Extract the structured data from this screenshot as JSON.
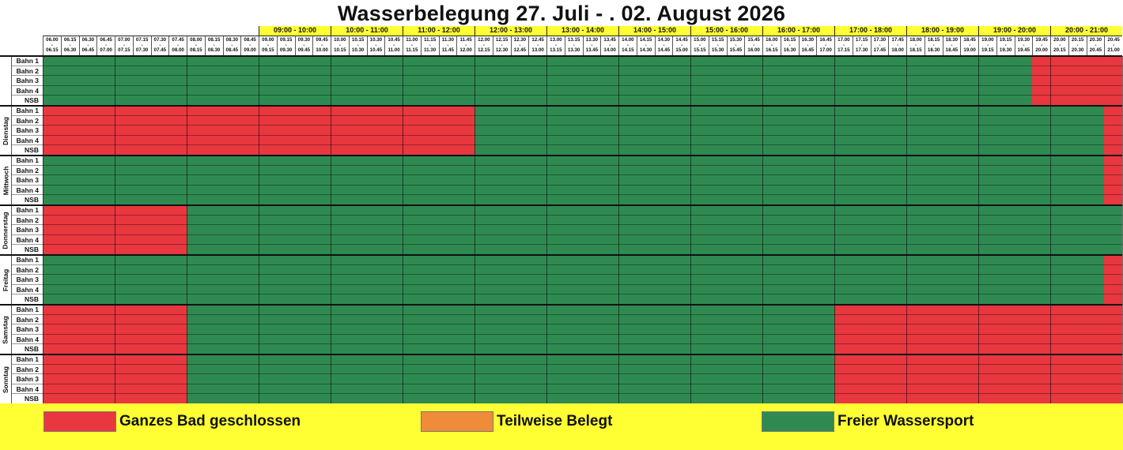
{
  "title": "Wasserbelegung 27. Juli - . 02. August 2026",
  "hours": [
    {
      "label": "09:00 - 10:00",
      "first": 12
    },
    {
      "label": "10:00 - 11:00",
      "first": 16
    },
    {
      "label": "11:00 - 12:00",
      "first": 20
    },
    {
      "label": "12:00 - 13:00",
      "first": 24
    },
    {
      "label": "13:00 - 14:00",
      "first": 28
    },
    {
      "label": "14:00 - 15:00",
      "first": 32
    },
    {
      "label": "15:00 - 16:00",
      "first": 36
    },
    {
      "label": "16:00 - 17:00",
      "first": 40
    },
    {
      "label": "17:00 - 18:00",
      "first": 44
    },
    {
      "label": "18:00 - 19:00",
      "first": 48
    },
    {
      "label": "19:00 - 20:00",
      "first": 52
    },
    {
      "label": "20:00 - 21:00",
      "first": 56
    }
  ],
  "slot_starts": [
    "06.00",
    "06.15",
    "06.30",
    "06.45",
    "07.00",
    "07.15",
    "07.30",
    "07.45",
    "08.00",
    "08.15",
    "08.30",
    "08.45",
    "09.00",
    "09.15",
    "09.30",
    "09.45",
    "10.00",
    "10.15",
    "10.30",
    "10.45",
    "11.00",
    "11.15",
    "11.30",
    "11.45",
    "12.00",
    "12.15",
    "12.30",
    "12.45",
    "13.00",
    "13.15",
    "13.30",
    "13.45",
    "14.00",
    "14.15",
    "14.30",
    "14.45",
    "15.00",
    "15.15",
    "15.30",
    "15.45",
    "16.00",
    "16.15",
    "16.30",
    "16.45",
    "17.00",
    "17.15",
    "17.30",
    "17.45",
    "18.00",
    "18.15",
    "18.30",
    "18.45",
    "19.00",
    "19.15",
    "19.30",
    "19.45",
    "20.00",
    "20.15",
    "20.30",
    "20.45"
  ],
  "slot_ends": [
    "06.15",
    "06.30",
    "06.45",
    "07.00",
    "07.15",
    "07.30",
    "07.45",
    "08.00",
    "08.15",
    "08.30",
    "08.45",
    "09.00",
    "09.15",
    "09.30",
    "09.45",
    "10.00",
    "10.15",
    "10.30",
    "10.45",
    "11.00",
    "11.15",
    "11.30",
    "11.45",
    "12.00",
    "12.15",
    "12.30",
    "12.45",
    "13.00",
    "13.15",
    "13.30",
    "13.45",
    "14.00",
    "14.15",
    "14.30",
    "14.45",
    "15.00",
    "15.15",
    "15.30",
    "15.45",
    "16.00",
    "16.15",
    "16.30",
    "16.45",
    "17.00",
    "17.15",
    "17.30",
    "17.45",
    "18.00",
    "18.15",
    "18.30",
    "18.45",
    "19.00",
    "19.15",
    "19.30",
    "19.45",
    "20.00",
    "20.15",
    "20.30",
    "20.45",
    "21.00"
  ],
  "lanes": [
    "Bahn 1",
    "Bahn 2",
    "Bahn 3",
    "Bahn 4",
    "NSB"
  ],
  "days": [
    {
      "name": "",
      "closed": [
        [
          55,
          60
        ]
      ]
    },
    {
      "name": "Dienstag",
      "closed": [
        [
          0,
          24
        ],
        [
          59,
          60
        ]
      ]
    },
    {
      "name": "Mittwoch",
      "closed": [
        [
          59,
          60
        ]
      ]
    },
    {
      "name": "Donnerstag",
      "closed": [
        [
          0,
          8
        ]
      ]
    },
    {
      "name": "Freitag",
      "closed": [
        [
          59,
          60
        ]
      ]
    },
    {
      "name": "Samstag",
      "closed": [
        [
          0,
          8
        ],
        [
          44,
          60
        ]
      ]
    },
    {
      "name": "Sonntag",
      "closed": [
        [
          0,
          8
        ],
        [
          44,
          60
        ]
      ]
    }
  ],
  "colors": {
    "closed": "#e8373f",
    "partial": "#ee8c3a",
    "free": "#2f8a52",
    "header": "#ffff33"
  },
  "legend": [
    {
      "label": "Ganzes Bad geschlossen",
      "color": "#e8373f"
    },
    {
      "label": "Teilweise Belegt",
      "color": "#ee8c3a"
    },
    {
      "label": "Freier Wassersport",
      "color": "#2f8a52"
    }
  ]
}
